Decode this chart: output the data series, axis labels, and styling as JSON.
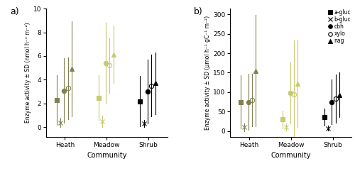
{
  "panel_a": {
    "title": "a)",
    "ylabel": "Enzyme activity ± SD (nmol h⁻¹ m⁻²)",
    "xlabel": "Community",
    "ylim": [
      -0.8,
      10
    ],
    "yticks": [
      0,
      2,
      4,
      6,
      8,
      10
    ],
    "enzymes": {
      "a-gluc": {
        "means": [
          2.3,
          2.5,
          2.2
        ],
        "errors": [
          2.1,
          1.9,
          2.1
        ],
        "marker": "s"
      },
      "b-gluc": {
        "means": [
          0.4,
          0.5,
          0.3
        ],
        "errors": [
          0.4,
          0.5,
          0.3
        ],
        "marker": "x"
      },
      "cbh": {
        "means": [
          3.1,
          5.4,
          3.0
        ],
        "errors": [
          2.7,
          3.4,
          2.7
        ],
        "marker": "o",
        "filled": true
      },
      "xylo": {
        "means": [
          3.3,
          5.2,
          3.5
        ],
        "errors": [
          2.6,
          2.3,
          2.6
        ],
        "marker": "o",
        "filled": false
      },
      "nag": {
        "means": [
          4.9,
          6.1,
          3.7
        ],
        "errors": [
          4.0,
          2.4,
          2.6
        ],
        "marker": "^",
        "filled": true
      }
    }
  },
  "panel_b": {
    "title": "b)",
    "ylabel": "Enzyme activity ± SD (µmol h⁻¹ gC⁻¹ m⁻²)",
    "xlabel": "Community",
    "ylim": [
      -15,
      315
    ],
    "yticks": [
      0,
      50,
      100,
      150,
      200,
      250,
      300
    ],
    "enzymes": {
      "a-gluc": {
        "means": [
          75,
          30,
          35
        ],
        "errors": [
          68,
          23,
          22
        ],
        "marker": "s",
        "filled": true
      },
      "b-gluc": {
        "means": [
          10,
          10,
          7
        ],
        "errors": [
          10,
          9,
          6
        ],
        "marker": "x",
        "filled": true
      },
      "cbh": {
        "means": [
          75,
          98,
          75
        ],
        "errors": [
          73,
          78,
          58
        ],
        "marker": "o",
        "filled": true
      },
      "xylo": {
        "means": [
          80,
          95,
          83
        ],
        "errors": [
          68,
          138,
          62
        ],
        "marker": "o",
        "filled": false
      },
      "nag": {
        "means": [
          155,
          122,
          93
        ],
        "errors": [
          143,
          113,
          58
        ],
        "marker": "^",
        "filled": true
      }
    }
  },
  "enzyme_order": [
    "a-gluc",
    "b-gluc",
    "cbh",
    "xylo",
    "nag"
  ],
  "legend_labels": [
    "a-gluc",
    "b-gluc",
    "cbh",
    "xylo",
    "nag"
  ],
  "legend_markers": [
    "s",
    "x",
    "o",
    "o",
    "^"
  ],
  "legend_filled": [
    true,
    true,
    true,
    false,
    true
  ],
  "community_colors": [
    "#808050",
    "#c8c870",
    "#000000"
  ],
  "community_names": [
    "Heath",
    "Meadow",
    "Shrub"
  ],
  "enz_offsets": [
    -0.2,
    -0.11,
    -0.02,
    0.07,
    0.16
  ]
}
